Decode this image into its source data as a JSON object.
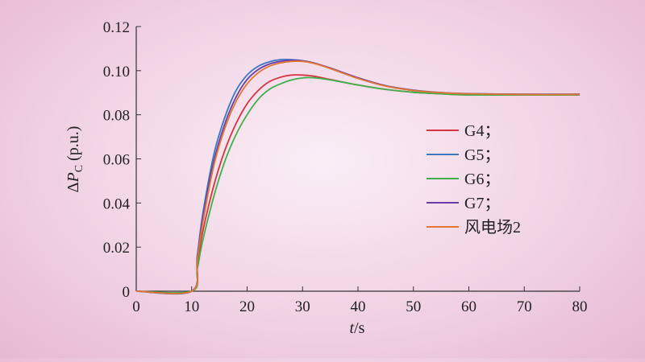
{
  "chart_data": {
    "type": "line",
    "xlabel": {
      "var": "t",
      "unit": "/s"
    },
    "ylabel": {
      "prefix": "Δ",
      "var": "P",
      "sub": "C",
      "unit": " (p.u.)"
    },
    "xlim": [
      0,
      80
    ],
    "ylim": [
      0,
      0.12
    ],
    "xticks": [
      "0",
      "10",
      "20",
      "30",
      "40",
      "50",
      "60",
      "70",
      "80"
    ],
    "yticks": [
      "0",
      "0.02",
      "0.04",
      "0.06",
      "0.08",
      "0.10",
      "0.12"
    ],
    "grid": false,
    "legend_position": "right",
    "series": [
      {
        "name": "G4；",
        "color": "#d6343f",
        "x": [
          0,
          10,
          11,
          12,
          14,
          16,
          18,
          20,
          22,
          24,
          26,
          28,
          30,
          32,
          35,
          40,
          45,
          50,
          55,
          60,
          70,
          80
        ],
        "y": [
          0,
          0,
          0.012,
          0.027,
          0.048,
          0.064,
          0.076,
          0.085,
          0.091,
          0.095,
          0.097,
          0.098,
          0.098,
          0.0975,
          0.096,
          0.0935,
          0.0915,
          0.0902,
          0.0895,
          0.089,
          0.089,
          0.089
        ]
      },
      {
        "name": "G5；",
        "color": "#3a78c2",
        "x": [
          0,
          10,
          11,
          12,
          14,
          16,
          18,
          20,
          22,
          24,
          26,
          28,
          30,
          32,
          35,
          40,
          45,
          50,
          55,
          60,
          70,
          80
        ],
        "y": [
          0,
          0,
          0.016,
          0.035,
          0.062,
          0.079,
          0.091,
          0.098,
          0.102,
          0.104,
          0.105,
          0.105,
          0.1045,
          0.1035,
          0.101,
          0.0965,
          0.093,
          0.091,
          0.09,
          0.0895,
          0.0893,
          0.0893
        ]
      },
      {
        "name": "G6；",
        "color": "#3fb04a",
        "x": [
          0,
          10,
          11,
          12,
          14,
          16,
          18,
          20,
          22,
          24,
          26,
          28,
          30,
          32,
          35,
          40,
          45,
          50,
          55,
          60,
          70,
          80
        ],
        "y": [
          0,
          0,
          0.01,
          0.023,
          0.043,
          0.059,
          0.071,
          0.08,
          0.087,
          0.0915,
          0.094,
          0.0958,
          0.0967,
          0.0968,
          0.0958,
          0.0935,
          0.0915,
          0.0902,
          0.0895,
          0.089,
          0.089,
          0.089
        ]
      },
      {
        "name": "G7；",
        "color": "#6a3ea8",
        "x": [
          0,
          10,
          11,
          12,
          14,
          16,
          18,
          20,
          22,
          24,
          26,
          28,
          30,
          32,
          35,
          40,
          45,
          50,
          55,
          60,
          70,
          80
        ],
        "y": [
          0,
          0,
          0.015,
          0.033,
          0.059,
          0.076,
          0.088,
          0.096,
          0.1005,
          0.103,
          0.1042,
          0.1047,
          0.1045,
          0.1035,
          0.1012,
          0.0968,
          0.0932,
          0.0912,
          0.0901,
          0.0896,
          0.0893,
          0.0893
        ]
      },
      {
        "name": "风电场2",
        "color": "#e2772f",
        "x": [
          0,
          10,
          11,
          12,
          14,
          16,
          18,
          20,
          22,
          24,
          26,
          28,
          30,
          32,
          35,
          40,
          45,
          50,
          55,
          60,
          70,
          80
        ],
        "y": [
          0,
          0,
          0.014,
          0.031,
          0.057,
          0.074,
          0.086,
          0.094,
          0.099,
          0.102,
          0.1035,
          0.1042,
          0.1042,
          0.1033,
          0.101,
          0.0965,
          0.093,
          0.091,
          0.09,
          0.0895,
          0.0892,
          0.0892
        ]
      }
    ]
  }
}
